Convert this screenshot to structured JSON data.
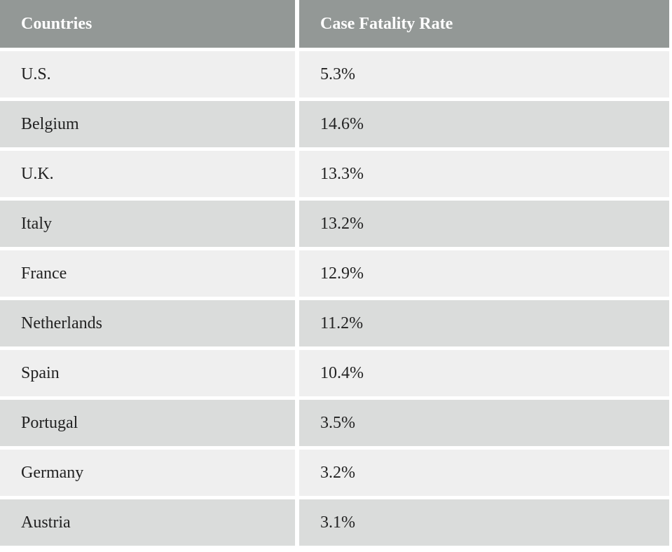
{
  "table": {
    "headers": [
      "Countries",
      "Case Fatality Rate"
    ],
    "rows": [
      [
        "U.S.",
        "5.3%"
      ],
      [
        "Belgium",
        "14.6%"
      ],
      [
        "U.K.",
        "13.3%"
      ],
      [
        "Italy",
        "13.2%"
      ],
      [
        "France",
        "12.9%"
      ],
      [
        "Netherlands",
        "11.2%"
      ],
      [
        "Spain",
        "10.4%"
      ],
      [
        "Portugal",
        "3.5%"
      ],
      [
        "Germany",
        "3.2%"
      ],
      [
        "Austria",
        "3.1%"
      ]
    ]
  },
  "colors": {
    "header_bg": "#939896",
    "row_light": "#efefef",
    "row_dark": "#dadcdb"
  }
}
